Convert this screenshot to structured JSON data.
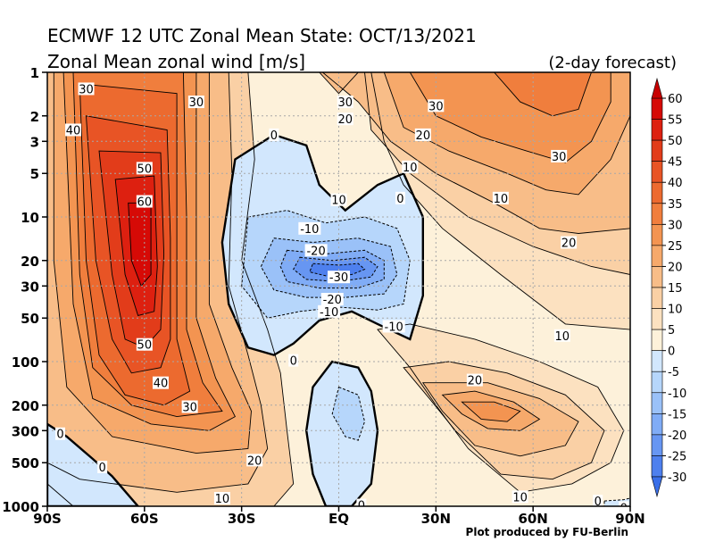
{
  "titles": {
    "line1": "ECMWF 12 UTC Zonal Mean State: OCT/13/2021",
    "line2": "Zonal Mean zonal wind [m/s]",
    "forecast": "(2-day forecast)",
    "credit": "Plot produced by FU-Berlin"
  },
  "colors": {
    "neg_shades": [
      "#4e80ee",
      "#6796f2",
      "#80acf6",
      "#9ac1f8",
      "#b6d6fb",
      "#d2e7fd"
    ],
    "pos_shades": [
      "#fdf1da",
      "#fce1c0",
      "#fad0a5",
      "#f8bd88",
      "#f6a96b",
      "#f39451",
      "#f07e3d",
      "#ec6a2f",
      "#e85425",
      "#e23c1a",
      "#dd2010",
      "#d60a06"
    ],
    "grid": "#a8a8a8"
  },
  "chart_data": {
    "type": "contour",
    "title": "ECMWF 12 UTC Zonal Mean State: OCT/13/2021",
    "subtitle": "Zonal Mean zonal wind [m/s]",
    "x_ticks": [
      "90S",
      "60S",
      "30S",
      "EQ",
      "30N",
      "60N",
      "90N"
    ],
    "x_values": [
      -90,
      -60,
      -30,
      0,
      30,
      60,
      90
    ],
    "y_ticks": [
      "1",
      "2",
      "3",
      "5",
      "10",
      "20",
      "30",
      "50",
      "100",
      "200",
      "300",
      "500",
      "1000"
    ],
    "y_values": [
      1,
      2,
      3,
      5,
      10,
      20,
      30,
      50,
      100,
      200,
      300,
      500,
      1000
    ],
    "y_scale": "log",
    "y_reversed": true,
    "grid": true,
    "colorbar_levels": [
      -30,
      -25,
      -20,
      -15,
      -10,
      -5,
      0,
      5,
      10,
      15,
      20,
      25,
      30,
      35,
      40,
      45,
      50,
      55,
      60
    ],
    "colorbar_labels": [
      "60",
      "55",
      "50",
      "45",
      "40",
      "35",
      "30",
      "25",
      "20",
      "15",
      "10",
      "5",
      "0",
      "-5",
      "-10",
      "-15",
      "-20",
      "-25",
      "-30"
    ],
    "contour_labels": [
      {
        "text": "30",
        "lat": -78,
        "p": 1.3
      },
      {
        "text": "30",
        "lat": -44,
        "p": 1.6
      },
      {
        "text": "40",
        "lat": -82,
        "p": 2.5
      },
      {
        "text": "50",
        "lat": -60,
        "p": 4.6
      },
      {
        "text": "60",
        "lat": -60,
        "p": 7.8
      },
      {
        "text": "50",
        "lat": -60,
        "p": 76
      },
      {
        "text": "40",
        "lat": -55,
        "p": 140
      },
      {
        "text": "30",
        "lat": -46,
        "p": 205
      },
      {
        "text": "20",
        "lat": -26,
        "p": 480
      },
      {
        "text": "10",
        "lat": -36,
        "p": 880
      },
      {
        "text": "0",
        "lat": -86,
        "p": 315
      },
      {
        "text": "0",
        "lat": -73,
        "p": 535
      },
      {
        "text": "0",
        "lat": -20,
        "p": 2.7
      },
      {
        "text": "30",
        "lat": 2,
        "p": 1.6
      },
      {
        "text": "20",
        "lat": 2,
        "p": 2.1
      },
      {
        "text": "30",
        "lat": 30,
        "p": 1.7
      },
      {
        "text": "20",
        "lat": 26,
        "p": 2.7
      },
      {
        "text": "10",
        "lat": 22,
        "p": 4.5
      },
      {
        "text": "10",
        "lat": 0,
        "p": 7.6
      },
      {
        "text": "0",
        "lat": 19,
        "p": 7.4
      },
      {
        "text": "10",
        "lat": 50,
        "p": 7.4
      },
      {
        "text": "30",
        "lat": 68,
        "p": 3.8
      },
      {
        "text": "20",
        "lat": 71,
        "p": 15
      },
      {
        "text": "-10",
        "lat": -9,
        "p": 12
      },
      {
        "text": "-20",
        "lat": -7,
        "p": 17
      },
      {
        "text": "-30",
        "lat": 0,
        "p": 26
      },
      {
        "text": "-20",
        "lat": -2,
        "p": 37
      },
      {
        "text": "-10",
        "lat": -3,
        "p": 45
      },
      {
        "text": "-10",
        "lat": 17,
        "p": 57
      },
      {
        "text": "0",
        "lat": -14,
        "p": 98
      },
      {
        "text": "10",
        "lat": 69,
        "p": 66
      },
      {
        "text": "20",
        "lat": 42,
        "p": 134
      },
      {
        "text": "10",
        "lat": 56,
        "p": 860
      },
      {
        "text": "0",
        "lat": 7,
        "p": 980
      },
      {
        "text": "0",
        "lat": 80,
        "p": 920
      },
      {
        "text": "0",
        "lat": 88,
        "p": 1020
      }
    ]
  }
}
